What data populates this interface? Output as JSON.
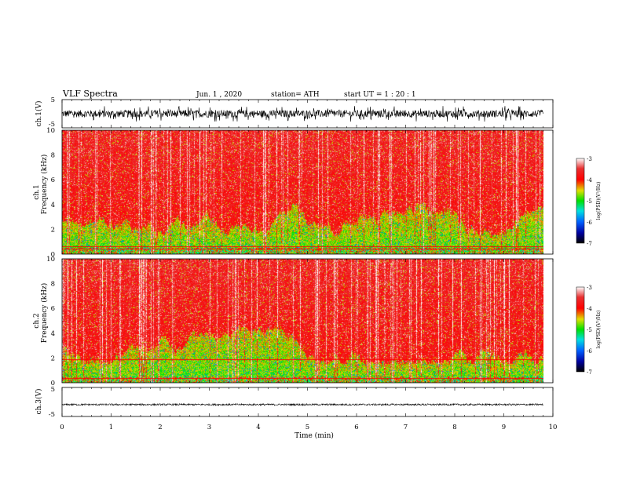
{
  "header": {
    "title": "VLF  Spectra",
    "date": "Jun.  1  , 2020",
    "station": "station= ATH",
    "start": "start  UT  =    1  : 20 : 1"
  },
  "chart_data": [
    {
      "type": "line",
      "name": "ch1-waveform",
      "ylabel": "ch.1(V)",
      "ylim": [
        -5,
        5
      ],
      "yticks": [
        "5",
        "-5"
      ],
      "xlim": [
        0,
        10
      ],
      "trace_color": "#000000"
    },
    {
      "type": "heatmap",
      "name": "ch1-spectrogram",
      "ylabel_line1": "ch.1",
      "ylabel_line2": "Frequency  (kHz)",
      "ylim": [
        0,
        10
      ],
      "yticks": [
        "0",
        "2",
        "4",
        "6",
        "8",
        "10"
      ],
      "xlim": [
        0,
        10
      ],
      "data_end_min": 9.8,
      "colorbar": {
        "label": "log(PSD)(V²/Hz)",
        "range": [
          -7,
          -3
        ],
        "ticks": [
          "-3",
          "-4",
          "-5",
          "-6",
          "-7"
        ]
      }
    },
    {
      "type": "heatmap",
      "name": "ch2-spectrogram",
      "ylabel_line1": "ch.2",
      "ylabel_line2": "Frequency  (kHz)",
      "ylim": [
        0,
        10
      ],
      "yticks": [
        "0",
        "2",
        "4",
        "6",
        "8",
        "10"
      ],
      "xlim": [
        0,
        10
      ],
      "data_end_min": 9.8,
      "colorbar": {
        "label": "log(PSD)(V²/Hz)",
        "range": [
          -7,
          -3
        ],
        "ticks": [
          "-3",
          "-4",
          "-5",
          "-6",
          "-7"
        ]
      }
    },
    {
      "type": "line",
      "name": "ch3-waveform",
      "ylabel": "ch.3(V)",
      "ylim": [
        -5,
        5
      ],
      "yticks": [
        "5",
        "-5"
      ],
      "xlim": [
        0,
        10
      ],
      "trace_color": "#000000"
    }
  ],
  "xaxis": {
    "label": "Time  (min)",
    "ticks": [
      "0",
      "1",
      "2",
      "3",
      "4",
      "5",
      "6",
      "7",
      "8",
      "9",
      "10"
    ]
  }
}
